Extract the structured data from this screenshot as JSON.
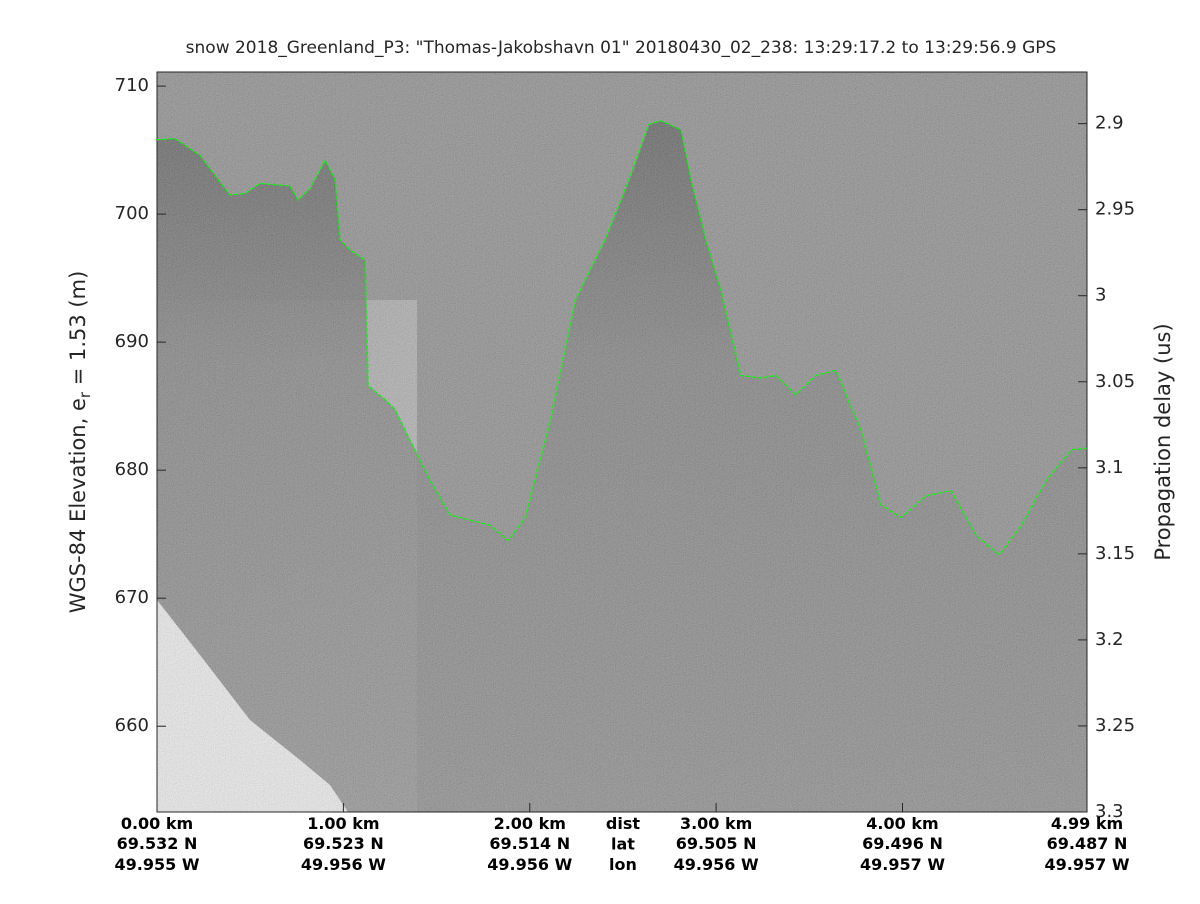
{
  "chart_data": {
    "type": "echogram",
    "title": "snow 2018_Greenland_P3: \"Thomas-Jakobshavn 01\"  20180430_02_238: 13:29:17.2 to 13:29:56.9 GPS",
    "ylabel": {
      "main": "WGS-84 Elevation, e",
      "sub": "r",
      "rest": " = 1.53 (m)"
    },
    "y2label": "Propagation delay (us)",
    "xlim": [
      0,
      4.99
    ],
    "ylim": [
      653.3,
      711.1
    ],
    "y2lim": [
      3.3,
      2.87
    ],
    "yticks": [
      660,
      670,
      680,
      690,
      700,
      710
    ],
    "y2ticks": [
      2.9,
      2.95,
      3,
      3.05,
      3.1,
      3.15,
      3.2,
      3.25,
      3.3
    ],
    "xticks": [
      {
        "value": 0,
        "label": "0.00 km"
      },
      {
        "value": 1,
        "label": "1.00 km"
      },
      {
        "value": 2,
        "label": "2.00 km"
      },
      {
        "value": 3,
        "label": "3.00 km"
      },
      {
        "value": 4,
        "label": "4.00 km"
      },
      {
        "value": 4.99,
        "label": "4.99 km"
      }
    ],
    "lat_labels": [
      "69.532 N",
      "69.523 N",
      "69.514 N",
      "69.505 N",
      "69.496 N",
      "69.487 N"
    ],
    "lon_labels": [
      "49.955 W",
      "49.956 W",
      "49.956 W",
      "49.956 W",
      "49.957 W",
      "49.957 W"
    ],
    "row_labels": [
      "dist",
      "lat",
      "lon"
    ],
    "surface": {
      "color": "#00ff00",
      "x": [
        0,
        0.097,
        0.231,
        0.392,
        0.473,
        0.554,
        0.715,
        0.758,
        0.823,
        0.903,
        0.957,
        0.984,
        1.038,
        1.118,
        1.134,
        1.226,
        1.28,
        1.36,
        1.468,
        1.575,
        1.683,
        1.79,
        1.887,
        1.978,
        2.113,
        2.247,
        2.409,
        2.543,
        2.64,
        2.704,
        2.812,
        2.866,
        2.946,
        3.027,
        3.134,
        3.242,
        3.323,
        3.43,
        3.538,
        3.645,
        3.78,
        3.887,
        3.995,
        4.129,
        4.263,
        4.398,
        4.522,
        4.64,
        4.774,
        4.909,
        4.99
      ],
      "values": [
        705.8,
        705.9,
        704.6,
        701.5,
        701.6,
        702.4,
        702.2,
        701.1,
        702.0,
        704.2,
        702.7,
        698.0,
        697.2,
        696.4,
        686.6,
        685.5,
        684.7,
        682.3,
        679.2,
        676.5,
        676.1,
        675.7,
        674.5,
        676.3,
        683.9,
        693.3,
        698.1,
        703.0,
        707.0,
        707.3,
        706.6,
        702.7,
        698.0,
        694.1,
        687.4,
        687.2,
        687.4,
        685.9,
        687.4,
        687.8,
        683.1,
        677.3,
        676.3,
        678.0,
        678.4,
        674.9,
        673.4,
        675.7,
        679.2,
        681.6,
        681.7
      ]
    }
  }
}
